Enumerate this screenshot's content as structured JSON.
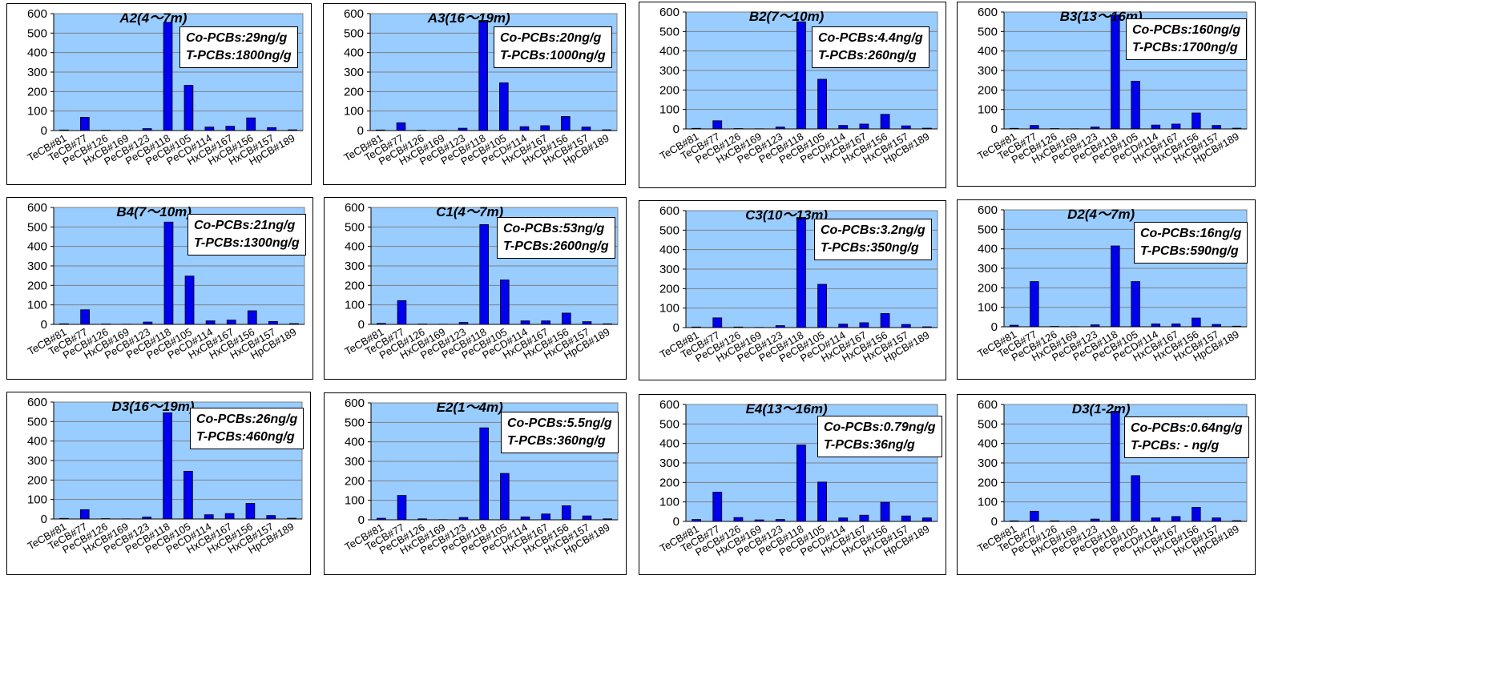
{
  "chart_data": [
    {
      "type": "bar",
      "title": "A2(4〜7m)",
      "annotation": [
        "Co-PCBs:29ng/g",
        "T-PCBs:1800ng/g"
      ],
      "categories": [
        "TeCB#81",
        "TeCB#77",
        "PeCB#126",
        "HxCB#169",
        "PeCB#123",
        "PeCB#118",
        "PeCB#105",
        "PeCD#114",
        "HxCB#167",
        "HxCB#156",
        "HxCB#157",
        "HpCB#189"
      ],
      "values": [
        3,
        68,
        2,
        1,
        10,
        555,
        232,
        18,
        22,
        65,
        15,
        4
      ],
      "ylim": [
        0,
        600
      ],
      "yticks": [
        0,
        100,
        200,
        300,
        400,
        500,
        600
      ],
      "grid": true,
      "bar_color": "#0000ee",
      "plot_bg": "#99ccff"
    },
    {
      "type": "bar",
      "title": "A3(16〜19m)",
      "annotation": [
        "Co-PCBs:20ng/g",
        "T-PCBs:1000ng/g"
      ],
      "categories": [
        "TeCB#81",
        "TeCB#77",
        "PeCB#126",
        "HxCB#169",
        "PeCB#123",
        "PeCB#118",
        "PeCB#105",
        "PeCD#114",
        "HxCB#167",
        "HxCB#156",
        "HxCB#157",
        "HpCB#189"
      ],
      "values": [
        3,
        40,
        2,
        1,
        12,
        565,
        245,
        20,
        25,
        72,
        18,
        4
      ],
      "ylim": [
        0,
        600
      ],
      "yticks": [
        0,
        100,
        200,
        300,
        400,
        500,
        600
      ],
      "grid": true,
      "bar_color": "#0000ee",
      "plot_bg": "#99ccff"
    },
    {
      "type": "bar",
      "title": "B2(7〜10m)",
      "annotation": [
        "Co-PCBs:4.4ng/g",
        "T-PCBs:260ng/g"
      ],
      "categories": [
        "TeCB#81",
        "TeCB#77",
        "PeCB#126",
        "HxCB#169",
        "PeCB#123",
        "PeCB#118",
        "PeCB#105",
        "PeCD#114",
        "HxCB#167",
        "HxCB#156",
        "HxCB#157",
        "HpCB#189"
      ],
      "values": [
        3,
        42,
        2,
        1,
        10,
        550,
        255,
        18,
        25,
        75,
        16,
        4
      ],
      "ylim": [
        0,
        600
      ],
      "yticks": [
        0,
        100,
        200,
        300,
        400,
        500,
        600
      ],
      "grid": true,
      "bar_color": "#0000ee",
      "plot_bg": "#99ccff"
    },
    {
      "type": "bar",
      "title": "B3(13〜16m)",
      "annotation": [
        "Co-PCBs:160ng/g",
        "T-PCBs:1700ng/g"
      ],
      "categories": [
        "TeCB#81",
        "TeCB#77",
        "PeCB#126",
        "HxCB#169",
        "PeCB#123",
        "PeCB#118",
        "PeCB#105",
        "PeCD#114",
        "HxCB#167",
        "HxCB#156",
        "HxCB#157",
        "HpCB#189"
      ],
      "values": [
        3,
        18,
        2,
        1,
        10,
        585,
        245,
        20,
        25,
        82,
        18,
        4
      ],
      "ylim": [
        0,
        600
      ],
      "yticks": [
        0,
        100,
        200,
        300,
        400,
        500,
        600
      ],
      "grid": true,
      "bar_color": "#0000ee",
      "plot_bg": "#99ccff"
    },
    {
      "type": "bar",
      "title": "B4(7〜10m)",
      "annotation": [
        "Co-PCBs:21ng/g",
        "T-PCBs:1300ng/g"
      ],
      "categories": [
        "TeCB#81",
        "TeCB#77",
        "PeCB#126",
        "HxCB#169",
        "PeCB#123",
        "PeCB#118",
        "PeCB#105",
        "PeCD#114",
        "HxCB#167",
        "HxCB#156",
        "HxCB#157",
        "HpCB#189"
      ],
      "values": [
        3,
        75,
        2,
        1,
        12,
        525,
        248,
        18,
        22,
        70,
        15,
        4
      ],
      "ylim": [
        0,
        600
      ],
      "yticks": [
        0,
        100,
        200,
        300,
        400,
        500,
        600
      ],
      "grid": true,
      "bar_color": "#0000ee",
      "plot_bg": "#99ccff"
    },
    {
      "type": "bar",
      "title": "C1(4〜7m)",
      "annotation": [
        "Co-PCBs:53ng/g",
        "T-PCBs:2600ng/g"
      ],
      "categories": [
        "TeCB#81",
        "TeCB#77",
        "PeCB#126",
        "HxCB#169",
        "PeCB#123",
        "PeCB#118",
        "PeCB#105",
        "PeCD#114",
        "HxCB#167",
        "HxCB#156",
        "HxCB#157",
        "HpCB#189"
      ],
      "values": [
        5,
        122,
        2,
        1,
        10,
        512,
        228,
        18,
        18,
        58,
        14,
        3
      ],
      "ylim": [
        0,
        600
      ],
      "yticks": [
        0,
        100,
        200,
        300,
        400,
        500,
        600
      ],
      "grid": true,
      "bar_color": "#0000ee",
      "plot_bg": "#99ccff"
    },
    {
      "type": "bar",
      "title": "C3(10〜13m)",
      "annotation": [
        "Co-PCBs:3.2ng/g",
        "T-PCBs:350ng/g"
      ],
      "categories": [
        "TeCB#81",
        "TeCB#77",
        "PeCB#126",
        "HxCB#169",
        "PeCB#123",
        "PeCB#118",
        "PeCB#105",
        "PeCD#114",
        "HxCB#167",
        "HxCB#156",
        "HxCB#157",
        "HpCB#189"
      ],
      "values": [
        3,
        50,
        3,
        1,
        10,
        565,
        222,
        18,
        25,
        72,
        16,
        4
      ],
      "ylim": [
        0,
        600
      ],
      "yticks": [
        0,
        100,
        200,
        300,
        400,
        500,
        600
      ],
      "grid": true,
      "bar_color": "#0000ee",
      "plot_bg": "#99ccff"
    },
    {
      "type": "bar",
      "title": "D2(4〜7m)",
      "annotation": [
        "Co-PCBs:16ng/g",
        "T-PCBs:590ng/g"
      ],
      "categories": [
        "TeCB#81",
        "TeCB#77",
        "PeCB#126",
        "HxCB#169",
        "PeCB#123",
        "PeCB#118",
        "PeCB#105",
        "PeCD#114",
        "HxCB#167",
        "HxCB#156",
        "HxCB#157",
        "HpCB#189"
      ],
      "values": [
        8,
        232,
        2,
        1,
        10,
        415,
        232,
        15,
        15,
        45,
        12,
        3
      ],
      "ylim": [
        0,
        600
      ],
      "yticks": [
        0,
        100,
        200,
        300,
        400,
        500,
        600
      ],
      "grid": true,
      "bar_color": "#0000ee",
      "plot_bg": "#99ccff"
    },
    {
      "type": "bar",
      "title": "D3(16〜19m)",
      "annotation": [
        "Co-PCBs:26ng/g",
        "T-PCBs:460ng/g"
      ],
      "categories": [
        "TeCB#81",
        "TeCB#77",
        "PeCB#126",
        "HxCB#169",
        "PeCB#123",
        "PeCB#118",
        "PeCB#105",
        "PeCD#114",
        "HxCB#167",
        "HxCB#156",
        "HxCB#157",
        "HpCB#189"
      ],
      "values": [
        3,
        48,
        2,
        1,
        10,
        545,
        245,
        22,
        28,
        80,
        18,
        4
      ],
      "ylim": [
        0,
        600
      ],
      "yticks": [
        0,
        100,
        200,
        300,
        400,
        500,
        600
      ],
      "grid": true,
      "bar_color": "#0000ee",
      "plot_bg": "#99ccff"
    },
    {
      "type": "bar",
      "title": "E2(1〜4m)",
      "annotation": [
        "Co-PCBs:5.5ng/g",
        "T-PCBs:360ng/g"
      ],
      "categories": [
        "TeCB#81",
        "TeCB#77",
        "PeCB#126",
        "HxCB#169",
        "PeCB#123",
        "PeCB#118",
        "PeCB#105",
        "PeCD#114",
        "HxCB#167",
        "HxCB#156",
        "HxCB#157",
        "HpCB#189"
      ],
      "values": [
        8,
        125,
        5,
        1,
        12,
        472,
        238,
        15,
        30,
        72,
        20,
        5
      ],
      "ylim": [
        0,
        600
      ],
      "yticks": [
        0,
        100,
        200,
        300,
        400,
        500,
        600
      ],
      "grid": true,
      "bar_color": "#0000ee",
      "plot_bg": "#99ccff"
    },
    {
      "type": "bar",
      "title": "E4(13〜16m)",
      "annotation": [
        "Co-PCBs:0.79ng/g",
        "T-PCBs:36ng/g"
      ],
      "categories": [
        "TeCB#81",
        "TeCB#77",
        "PeCB#126",
        "HxCB#169",
        "PeCB#123",
        "PeCB#118",
        "PeCB#105",
        "PeCD#114",
        "HxCB#167",
        "HxCB#156",
        "HxCB#157",
        "HpCB#189"
      ],
      "values": [
        10,
        150,
        20,
        8,
        10,
        392,
        202,
        18,
        32,
        98,
        28,
        18
      ],
      "ylim": [
        0,
        600
      ],
      "yticks": [
        0,
        100,
        200,
        300,
        400,
        500,
        600
      ],
      "grid": true,
      "bar_color": "#0000ee",
      "plot_bg": "#99ccff"
    },
    {
      "type": "bar",
      "title": "D3(1-2m)",
      "annotation": [
        "Co-PCBs:0.64ng/g",
        "T-PCBs: - ng/g"
      ],
      "categories": [
        "TeCB#81",
        "TeCB#77",
        "PeCB#126",
        "HxCB#169",
        "PeCB#123",
        "PeCB#118",
        "PeCB#105",
        "PeCD#114",
        "HxCB#167",
        "HxCB#156",
        "HxCB#157",
        "HpCB#189"
      ],
      "values": [
        3,
        52,
        3,
        1,
        12,
        565,
        235,
        18,
        25,
        72,
        18,
        4
      ],
      "ylim": [
        0,
        600
      ],
      "yticks": [
        0,
        100,
        200,
        300,
        400,
        500,
        600
      ],
      "grid": true,
      "bar_color": "#0000ee",
      "plot_bg": "#99ccff"
    }
  ]
}
